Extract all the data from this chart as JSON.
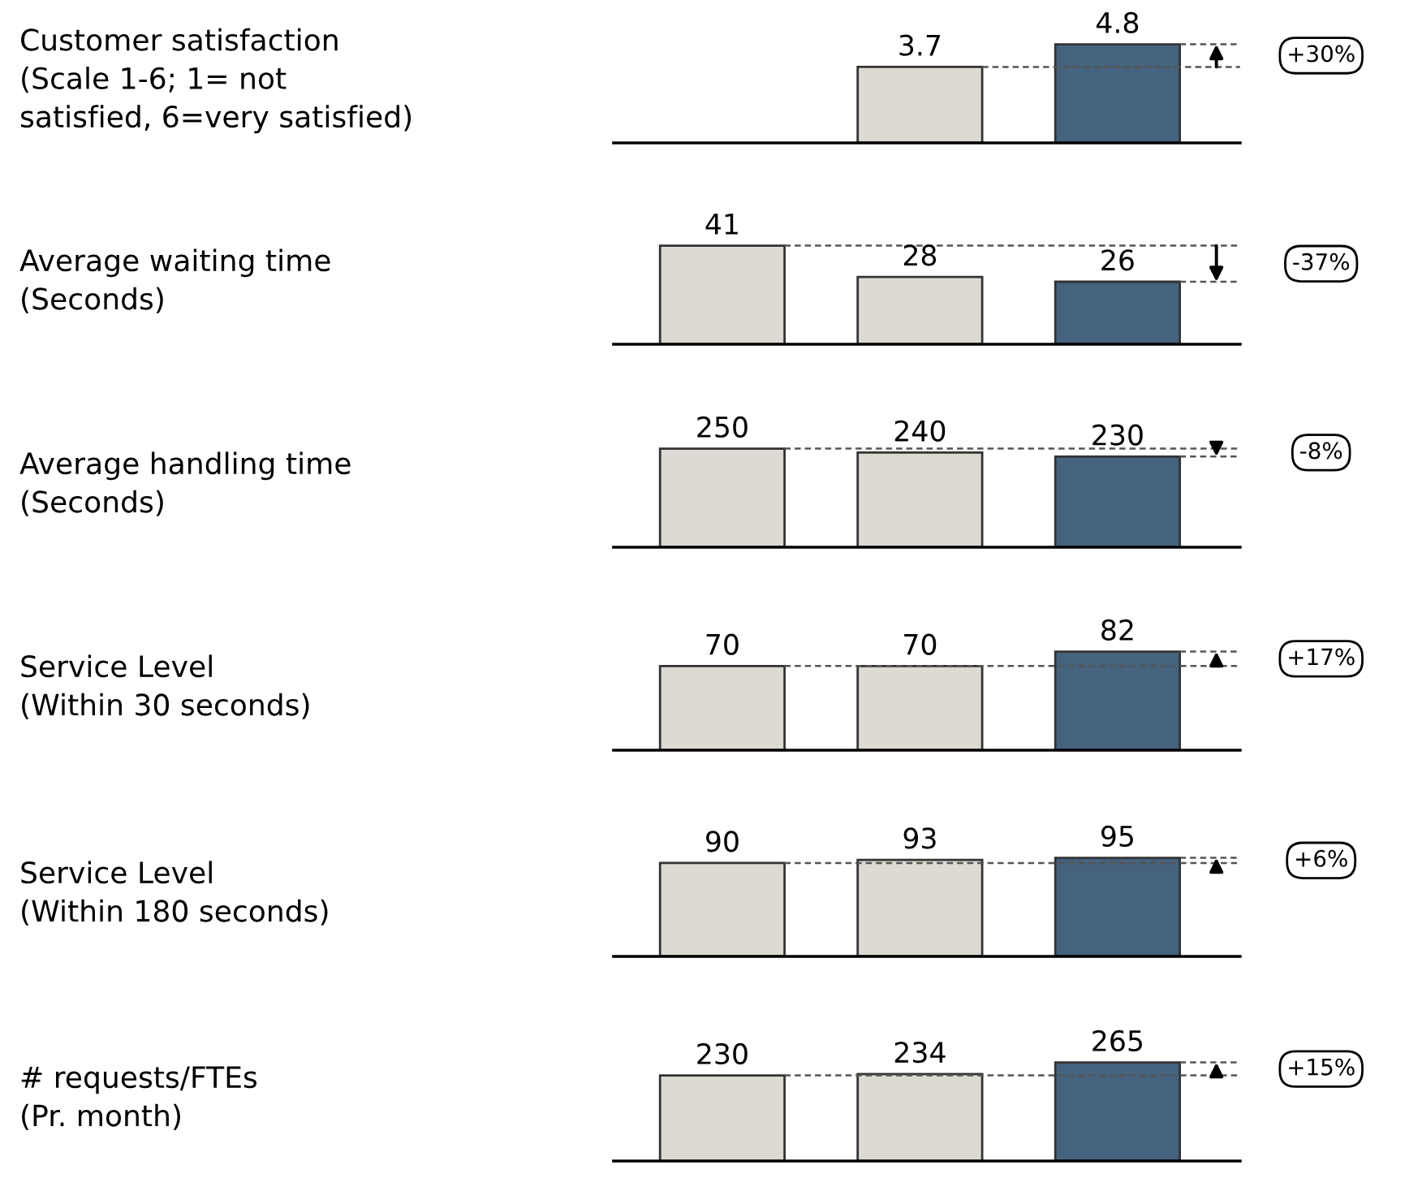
{
  "chart_data": [
    {
      "type": "bar",
      "ylabel": "Customer satisfaction\n(Scale 1-6; 1= not\nsatisfied, 6=very satisfied)",
      "categories": [
        null,
        null,
        null
      ],
      "values": [
        null,
        3.7,
        4.8
      ],
      "colors": [
        "#dcdad2",
        "#dcdad2",
        "#45627e"
      ],
      "tick_labels": false,
      "data_labels": true,
      "ref_lines": [
        {
          "axis": "y",
          "value": 3.7,
          "line_style": "dashed",
          "color": "#555555"
        },
        {
          "axis": "y",
          "value": 4.8,
          "line_style": "dashed",
          "color": "#555555"
        }
      ],
      "annotations": [
        "+30%"
      ]
    },
    {
      "type": "bar",
      "ylabel": "Average waiting time\n(Seconds)",
      "categories": [
        null,
        null,
        null
      ],
      "values": [
        41,
        28,
        26
      ],
      "colors": [
        "#dcdad2",
        "#dcdad2",
        "#45627e"
      ],
      "tick_labels": false,
      "data_labels": true,
      "ref_lines": [
        {
          "axis": "y",
          "value": 41,
          "line_style": "dashed",
          "color": "#555555"
        },
        {
          "axis": "y",
          "value": 26,
          "line_style": "dashed",
          "color": "#555555"
        }
      ],
      "annotations": [
        "-37%"
      ]
    },
    {
      "type": "bar",
      "ylabel": "Average handling time\n(Seconds)",
      "categories": [
        null,
        null,
        null
      ],
      "values": [
        250,
        240,
        230
      ],
      "colors": [
        "#dcdad2",
        "#dcdad2",
        "#45627e"
      ],
      "tick_labels": false,
      "data_labels": true,
      "ref_lines": [
        {
          "axis": "y",
          "value": 250,
          "line_style": "dashed",
          "color": "#555555"
        },
        {
          "axis": "y",
          "value": 230,
          "line_style": "dashed",
          "color": "#555555"
        }
      ],
      "annotations": [
        "-8%"
      ]
    },
    {
      "type": "bar",
      "ylabel": "Service Level\n(Within 30 seconds)",
      "categories": [
        null,
        null,
        null
      ],
      "values": [
        70,
        70,
        82
      ],
      "colors": [
        "#dcdad2",
        "#dcdad2",
        "#45627e"
      ],
      "tick_labels": false,
      "data_labels": true,
      "ref_lines": [
        {
          "axis": "y",
          "value": 70,
          "line_style": "dashed",
          "color": "#555555"
        },
        {
          "axis": "y",
          "value": 82,
          "line_style": "dashed",
          "color": "#555555"
        }
      ],
      "annotations": [
        "+17%"
      ]
    },
    {
      "type": "bar",
      "ylabel": "Service Level\n(Within 180 seconds)",
      "categories": [
        null,
        null,
        null
      ],
      "values": [
        90,
        93,
        95
      ],
      "colors": [
        "#dcdad2",
        "#dcdad2",
        "#45627e"
      ],
      "tick_labels": false,
      "data_labels": true,
      "ref_lines": [
        {
          "axis": "y",
          "value": 90,
          "line_style": "dashed",
          "color": "#555555"
        },
        {
          "axis": "y",
          "value": 95,
          "line_style": "dashed",
          "color": "#555555"
        }
      ],
      "annotations": [
        "+6%"
      ]
    },
    {
      "type": "bar",
      "ylabel": "# requests/FTEs\n(Pr. month)",
      "categories": [
        null,
        null,
        null
      ],
      "values": [
        230,
        234,
        265
      ],
      "colors": [
        "#dcdad2",
        "#dcdad2",
        "#45627e"
      ],
      "tick_labels": false,
      "data_labels": true,
      "ref_lines": [
        {
          "axis": "y",
          "value": 230,
          "line_style": "dashed",
          "color": "#555555"
        },
        {
          "axis": "y",
          "value": 265,
          "line_style": "dashed",
          "color": "#555555"
        }
      ],
      "annotations": [
        "+15%"
      ]
    }
  ]
}
